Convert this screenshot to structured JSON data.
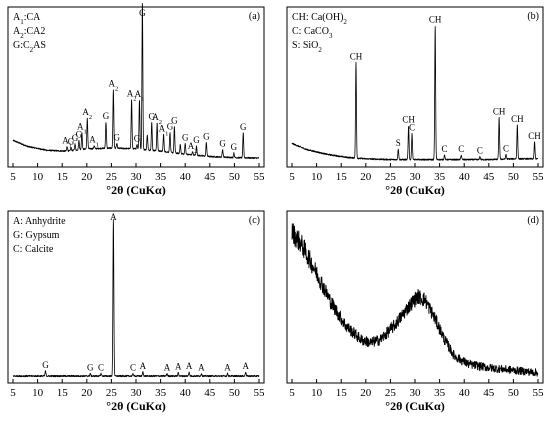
{
  "chart_data": [
    {
      "id": "a",
      "type": "line",
      "panel_label": "(a)",
      "legend": [
        {
          "sym": "A",
          "sub": "1",
          "desc": ":CA"
        },
        {
          "sym": "A",
          "sub": "2",
          "desc": ":CA2"
        },
        {
          "sym": "G:C",
          "sub": "2",
          "desc": "AS"
        }
      ],
      "xlabel": "°2θ (CuKα)",
      "xlim": [
        5,
        55
      ],
      "xticks": [
        5,
        10,
        15,
        20,
        25,
        30,
        35,
        40,
        45,
        50,
        55
      ],
      "ylim": [
        0,
        100
      ],
      "baseline": [
        [
          5,
          16
        ],
        [
          8,
          12
        ],
        [
          12,
          9.5
        ],
        [
          16,
          9
        ],
        [
          20,
          10.5
        ],
        [
          25,
          11
        ],
        [
          30,
          10.5
        ],
        [
          35,
          9
        ],
        [
          40,
          7
        ],
        [
          45,
          5.5
        ],
        [
          50,
          4.8
        ],
        [
          55,
          4.5
        ]
      ],
      "peaks": [
        {
          "x": 16.0,
          "h": 3,
          "label": "A1"
        },
        {
          "x": 16.8,
          "h": 2,
          "label": "G"
        },
        {
          "x": 17.6,
          "h": 4,
          "label": "G"
        },
        {
          "x": 18.4,
          "h": 6,
          "label": "G"
        },
        {
          "x": 19.0,
          "h": 11,
          "label": "A1"
        },
        {
          "x": 20.1,
          "h": 20,
          "label": "A2"
        },
        {
          "x": 21.5,
          "h": 2,
          "label": "A1"
        },
        {
          "x": 23.9,
          "h": 17,
          "label": "G"
        },
        {
          "x": 25.4,
          "h": 38,
          "label": "A2"
        },
        {
          "x": 26.1,
          "h": 3,
          "label": "G"
        },
        {
          "x": 29.1,
          "h": 32,
          "label": "A2"
        },
        {
          "x": 30.2,
          "h": 3,
          "label": "G"
        },
        {
          "x": 30.7,
          "h": 32,
          "label": "A1"
        },
        {
          "x": 31.3,
          "h": 96,
          "label": "G"
        },
        {
          "x": 32.3,
          "h": 10,
          "label": ""
        },
        {
          "x": 33.2,
          "h": 18,
          "label": "G"
        },
        {
          "x": 34.3,
          "h": 18,
          "label": "A2"
        },
        {
          "x": 35.6,
          "h": 11,
          "label": "A1"
        },
        {
          "x": 36.9,
          "h": 13,
          "label": "G"
        },
        {
          "x": 37.8,
          "h": 17,
          "label": "G"
        },
        {
          "x": 39.0,
          "h": 6,
          "label": ""
        },
        {
          "x": 40.0,
          "h": 7,
          "label": "G"
        },
        {
          "x": 41.5,
          "h": 2,
          "label": "A2"
        },
        {
          "x": 42.3,
          "h": 6,
          "label": "G"
        },
        {
          "x": 44.3,
          "h": 9,
          "label": "G"
        },
        {
          "x": 47.6,
          "h": 5,
          "label": "G"
        },
        {
          "x": 49.9,
          "h": 3,
          "label": "G"
        },
        {
          "x": 51.8,
          "h": 16,
          "label": "G"
        }
      ]
    },
    {
      "id": "b",
      "type": "line",
      "panel_label": "(b)",
      "legend": [
        {
          "sym": "CH",
          "sub": "",
          "desc": ": Ca(OH)",
          "post_sub": "2"
        },
        {
          "sym": "C",
          "sub": "",
          "desc": ": CaCO",
          "post_sub": "3"
        },
        {
          "sym": "S",
          "sub": "",
          "desc": ": SiO",
          "post_sub": "2"
        }
      ],
      "xlabel": "°2θ (CuKα)",
      "xlim": [
        5,
        55
      ],
      "xticks": [
        5,
        10,
        15,
        20,
        25,
        30,
        35,
        40,
        45,
        50,
        55
      ],
      "ylim": [
        0,
        100
      ],
      "baseline": [
        [
          5,
          14
        ],
        [
          8,
          10
        ],
        [
          12,
          7
        ],
        [
          16,
          5
        ],
        [
          20,
          4
        ],
        [
          25,
          3.5
        ],
        [
          30,
          3.5
        ],
        [
          35,
          3.5
        ],
        [
          40,
          3.5
        ],
        [
          45,
          3.5
        ],
        [
          50,
          4
        ],
        [
          55,
          4
        ]
      ],
      "peaks": [
        {
          "x": 18.0,
          "h": 62,
          "label": "CH"
        },
        {
          "x": 26.6,
          "h": 7,
          "label": "S"
        },
        {
          "x": 28.7,
          "h": 22,
          "label": "CH"
        },
        {
          "x": 29.4,
          "h": 17,
          "label": "C"
        },
        {
          "x": 34.1,
          "h": 87,
          "label": "CH"
        },
        {
          "x": 36.0,
          "h": 3,
          "label": "C"
        },
        {
          "x": 39.4,
          "h": 3,
          "label": "C"
        },
        {
          "x": 43.2,
          "h": 2,
          "label": "C"
        },
        {
          "x": 47.1,
          "h": 27,
          "label": "CH"
        },
        {
          "x": 48.5,
          "h": 3,
          "label": "C"
        },
        {
          "x": 50.8,
          "h": 22,
          "label": "CH"
        },
        {
          "x": 54.3,
          "h": 11,
          "label": "CH"
        }
      ]
    },
    {
      "id": "c",
      "type": "line",
      "panel_label": "(c)",
      "legend": [
        {
          "sym": "A",
          "sub": "",
          "desc": ": Anhydrite"
        },
        {
          "sym": "G",
          "sub": "",
          "desc": ": Gypsum"
        },
        {
          "sym": "C",
          "sub": "",
          "desc": ": Calcite"
        }
      ],
      "xlabel": "°2θ (CuKα)",
      "xlim": [
        5,
        55
      ],
      "xticks": [
        5,
        10,
        15,
        20,
        25,
        30,
        35,
        40,
        45,
        50,
        55
      ],
      "ylim": [
        0,
        100
      ],
      "baseline": [
        [
          5,
          3
        ],
        [
          55,
          3
        ]
      ],
      "peaks": [
        {
          "x": 11.6,
          "h": 3,
          "label": "G"
        },
        {
          "x": 20.7,
          "h": 1.5,
          "label": "G"
        },
        {
          "x": 22.9,
          "h": 1.5,
          "label": "C"
        },
        {
          "x": 25.4,
          "h": 95,
          "label": "A"
        },
        {
          "x": 29.4,
          "h": 1.5,
          "label": "C"
        },
        {
          "x": 31.4,
          "h": 2.5,
          "label": "A"
        },
        {
          "x": 36.3,
          "h": 1.5,
          "label": "A"
        },
        {
          "x": 38.6,
          "h": 2,
          "label": "A"
        },
        {
          "x": 40.8,
          "h": 2.5,
          "label": "A"
        },
        {
          "x": 43.3,
          "h": 1.5,
          "label": "A"
        },
        {
          "x": 48.6,
          "h": 1.5,
          "label": "A"
        },
        {
          "x": 52.3,
          "h": 2.5,
          "label": "A"
        }
      ]
    },
    {
      "id": "d",
      "type": "line",
      "panel_label": "(d)",
      "legend": [],
      "xlabel": "°2θ (CuKα)",
      "xlim": [
        5,
        55
      ],
      "xticks": [
        5,
        10,
        15,
        20,
        25,
        30,
        35,
        40,
        45,
        50,
        55
      ],
      "ylim": [
        0,
        100
      ],
      "curve": [
        [
          5,
          90
        ],
        [
          7,
          82
        ],
        [
          10,
          65
        ],
        [
          13,
          47
        ],
        [
          16,
          33
        ],
        [
          19,
          25
        ],
        [
          21,
          23
        ],
        [
          23,
          25
        ],
        [
          26,
          34
        ],
        [
          28.5,
          44
        ],
        [
          30.5,
          51
        ],
        [
          32,
          49
        ],
        [
          34,
          38
        ],
        [
          36,
          25
        ],
        [
          38,
          15
        ],
        [
          41,
          10
        ],
        [
          45,
          8
        ],
        [
          50,
          6.5
        ],
        [
          55,
          5
        ]
      ],
      "peaks": []
    }
  ]
}
